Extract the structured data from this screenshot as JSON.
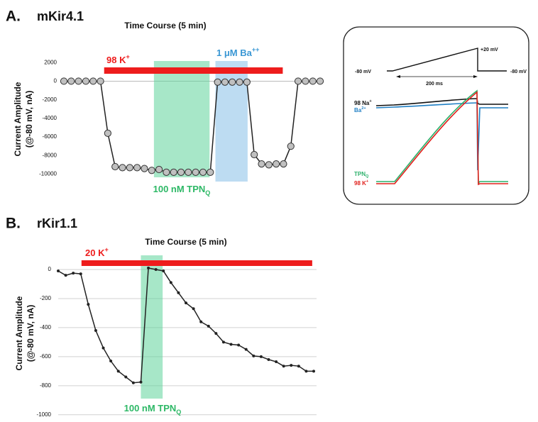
{
  "panels": [
    {
      "label": "A.",
      "name": "mKir4.1"
    },
    {
      "label": "B.",
      "name": "rKir1.1"
    }
  ],
  "chart_data": [
    {
      "type": "line",
      "title": "Time Course (5 min)",
      "y_label": [
        "Current Amplitude",
        "(@-80 mV, nA)"
      ],
      "values": [
        0,
        0,
        0,
        0,
        0,
        0,
        -5600,
        -9200,
        -9300,
        -9300,
        -9300,
        -9400,
        -9600,
        -9500,
        -9800,
        -9800,
        -9800,
        -9800,
        -9800,
        -9800,
        -9800,
        -100,
        -100,
        -100,
        -100,
        -100,
        -7900,
        -8900,
        -9000,
        -8900,
        -8900,
        -7000,
        0,
        0,
        0,
        0
      ],
      "color": "#222222",
      "marker": "circle",
      "marker_color": "#c0c0c0",
      "ylim": [
        -10800,
        2400
      ],
      "yticks": [
        2000,
        0,
        -2000,
        -4000,
        -6000,
        -8000,
        -10000
      ],
      "grid": false,
      "bands": [
        {
          "label": {
            "text": "98 K",
            "sup": "+"
          },
          "color": "#ee1c1c",
          "kind": "bar",
          "span": [
            5.5,
            29.9
          ]
        },
        {
          "label": {
            "text": "100 nM TPN",
            "sub": "Q"
          },
          "color": "#2db866",
          "fill": "#5fd39a",
          "kind": "shade",
          "span": [
            12.3,
            19.9
          ]
        },
        {
          "label": {
            "text": "1 μM Ba",
            "sup": "++"
          },
          "color": "#3a97d4",
          "fill": "#86bfe8",
          "kind": "shade",
          "span": [
            20.7,
            25.1
          ]
        }
      ]
    },
    {
      "type": "line",
      "title": "Time Course (5 min)",
      "y_label": [
        "Current Amplitude",
        "(@-80 mV, nA)"
      ],
      "values": [
        -10,
        -40,
        -25,
        -30,
        -240,
        -420,
        -540,
        -630,
        -700,
        -740,
        -780,
        -775,
        10,
        0,
        -10,
        -90,
        -160,
        -230,
        -270,
        -360,
        -390,
        -440,
        -500,
        -515,
        -520,
        -550,
        -595,
        -600,
        -620,
        -635,
        -665,
        -660,
        -665,
        -700,
        -700
      ],
      "color": "#222222",
      "marker": "dot",
      "marker_color": "#222222",
      "ylim": [
        -1040,
        100
      ],
      "yticks": [
        0,
        -200,
        -400,
        -600,
        -800,
        -1000
      ],
      "grid": true,
      "bands": [
        {
          "label": {
            "text": "20 K",
            "sup": "+"
          },
          "color": "#ee1c1c",
          "kind": "bar",
          "span": [
            3.1,
            33.8
          ]
        },
        {
          "label": {
            "text": "100 nM TPN",
            "sub": "Q"
          },
          "color": "#2db866",
          "fill": "#5fd39a",
          "kind": "shade",
          "span": [
            11.0,
            13.9
          ]
        }
      ]
    }
  ],
  "inset": {
    "labels": [
      {
        "text": "-80 mV"
      },
      {
        "text": "+20 mV"
      },
      {
        "text": "-80 mV"
      },
      {
        "text": "200 ms"
      },
      {
        "text": "98 Na",
        "sup": "+"
      },
      {
        "text": "Ba",
        "sup": "2+"
      },
      {
        "text": "TPN",
        "sub": "Q"
      },
      {
        "text": "98 K",
        "sup": "+"
      }
    ]
  }
}
